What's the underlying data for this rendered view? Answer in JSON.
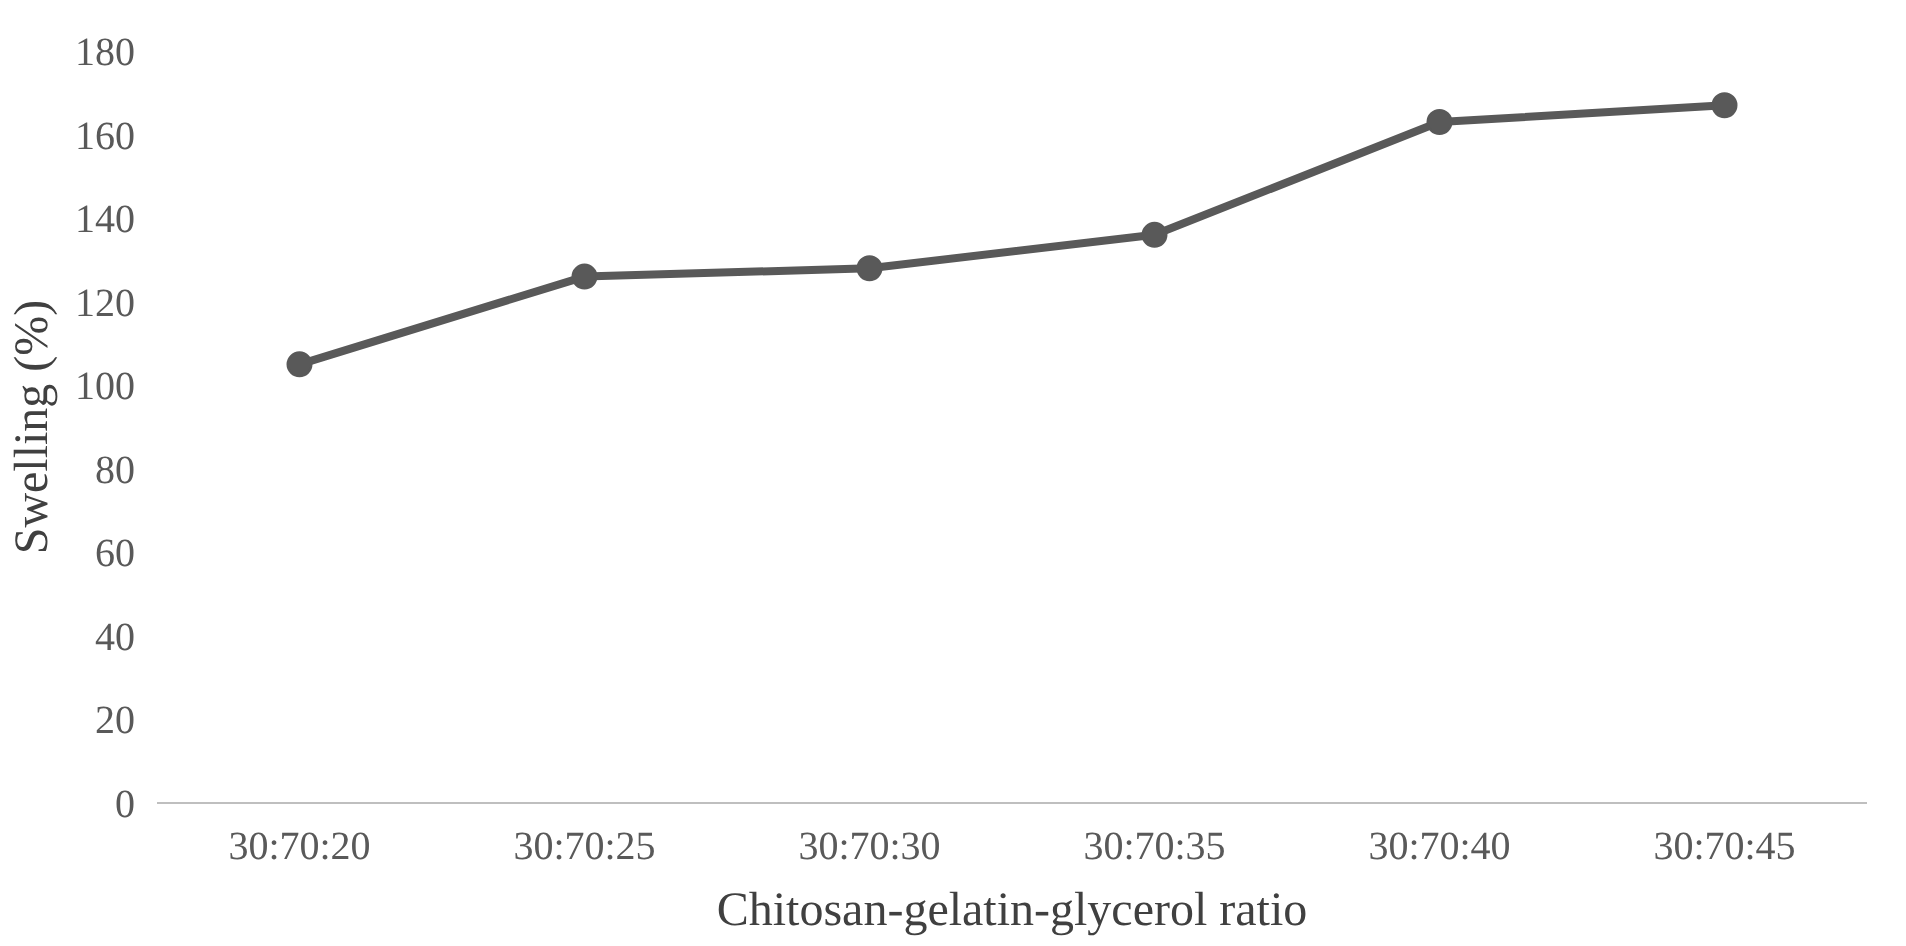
{
  "chart_data": {
    "type": "line",
    "xlabel": "Chitosan-gelatin-glycerol ratio",
    "ylabel": "Swelling (%)",
    "categories": [
      "30:70:20",
      "30:70:25",
      "30:70:30",
      "30:70:35",
      "30:70:40",
      "30:70:45"
    ],
    "series": [
      {
        "color": "#595959",
        "values": [
          105,
          126,
          128,
          136,
          163,
          167
        ]
      }
    ],
    "ylim": [
      0,
      180
    ],
    "yticks": [
      0,
      20,
      40,
      60,
      80,
      100,
      120,
      140,
      160,
      180
    ],
    "marker": "circle",
    "line_style": "solid"
  }
}
